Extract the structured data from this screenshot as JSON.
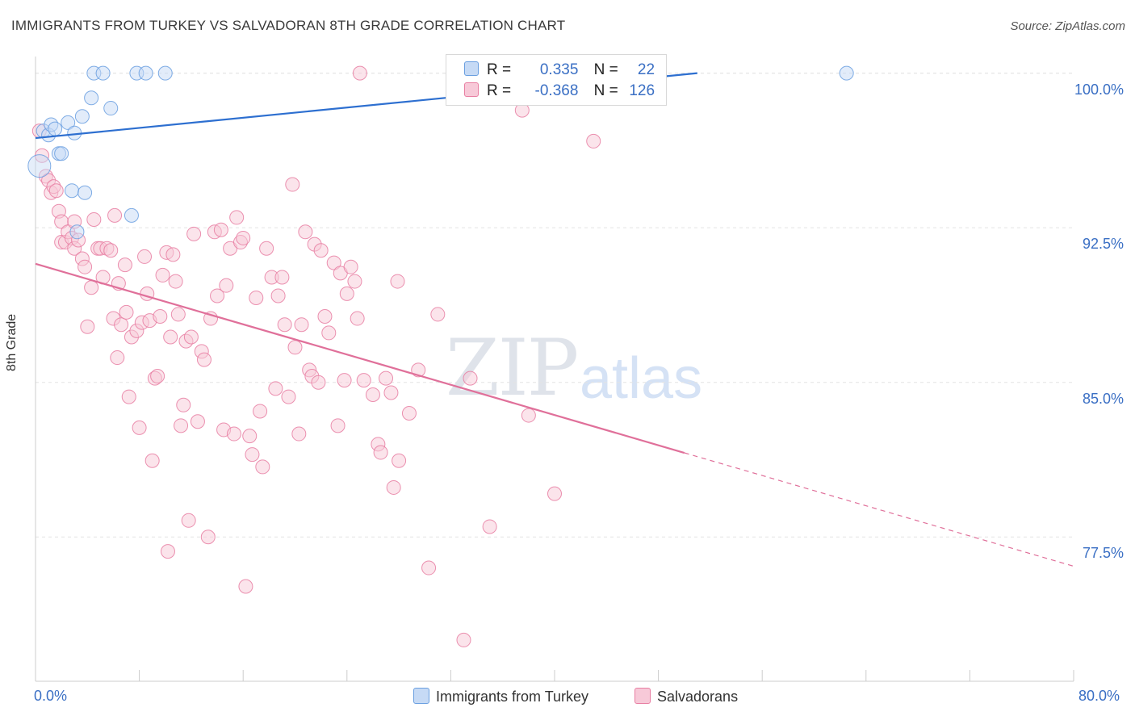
{
  "title": "IMMIGRANTS FROM TURKEY VS SALVADORAN 8TH GRADE CORRELATION CHART",
  "source": "Source: ZipAtlas.com",
  "watermark": {
    "zip": "ZIP",
    "atlas": "atlas"
  },
  "colors": {
    "blue": "#6a9fe0",
    "blue_fill": "#c6daf5",
    "pink": "#e87ea2",
    "pink_fill": "#f7c9d8",
    "blue_line": "#2d6fd0",
    "pink_line": "#e0709a",
    "tick_text": "#3a6fc4"
  },
  "stats": {
    "rows": [
      {
        "r_label": "R =",
        "r_value": "0.335",
        "n_label": "N =",
        "n_value": "22"
      },
      {
        "r_label": "R =",
        "r_value": "-0.368",
        "n_label": "N =",
        "n_value": "126"
      }
    ]
  },
  "legend": {
    "series1": "Immigrants from Turkey",
    "series2": "Salvadorans"
  },
  "chart_data": {
    "type": "scatter",
    "xlabel": "",
    "ylabel": "8th Grade",
    "xlim": [
      0,
      80
    ],
    "ylim": [
      70.5,
      101.2
    ],
    "x_tick_labels": [
      "0.0%",
      "80.0%"
    ],
    "y_ticks": [
      77.5,
      85.0,
      92.5,
      100.0
    ],
    "y_tick_labels": [
      "77.5%",
      "85.0%",
      "92.5%",
      "100.0%"
    ],
    "grid": true,
    "series": [
      {
        "name": "Immigrants from Turkey",
        "color": "#6a9fe0",
        "points": [
          [
            0.3,
            95.5
          ],
          [
            0.6,
            97.2
          ],
          [
            1.0,
            97.0
          ],
          [
            1.2,
            97.5
          ],
          [
            1.5,
            97.3
          ],
          [
            1.8,
            96.1
          ],
          [
            2.0,
            96.1
          ],
          [
            2.5,
            97.6
          ],
          [
            2.8,
            94.3
          ],
          [
            3.0,
            97.1
          ],
          [
            3.2,
            92.3
          ],
          [
            3.6,
            97.9
          ],
          [
            3.8,
            94.2
          ],
          [
            4.3,
            98.8
          ],
          [
            4.5,
            100.0
          ],
          [
            5.2,
            100.0
          ],
          [
            5.8,
            98.3
          ],
          [
            7.4,
            93.1
          ],
          [
            7.8,
            100.0
          ],
          [
            8.5,
            100.0
          ],
          [
            10.0,
            100.0
          ],
          [
            62.5,
            100.0
          ]
        ],
        "trend": {
          "x": [
            0,
            51
          ],
          "y": [
            96.85,
            100.0
          ],
          "solid_to": 51
        }
      },
      {
        "name": "Salvadorans",
        "color": "#e87ea2",
        "points": [
          [
            0.3,
            97.2
          ],
          [
            0.5,
            96.0
          ],
          [
            0.8,
            95.0
          ],
          [
            1.0,
            94.8
          ],
          [
            1.2,
            94.2
          ],
          [
            1.4,
            94.5
          ],
          [
            1.6,
            94.3
          ],
          [
            1.8,
            93.3
          ],
          [
            2.0,
            92.8
          ],
          [
            2.0,
            91.8
          ],
          [
            2.3,
            91.8
          ],
          [
            2.5,
            92.3
          ],
          [
            2.8,
            92.0
          ],
          [
            3.0,
            92.8
          ],
          [
            3.0,
            91.5
          ],
          [
            3.3,
            91.9
          ],
          [
            3.6,
            91.0
          ],
          [
            3.8,
            90.6
          ],
          [
            4.0,
            87.7
          ],
          [
            4.3,
            89.6
          ],
          [
            4.5,
            92.9
          ],
          [
            4.8,
            91.5
          ],
          [
            5.0,
            91.5
          ],
          [
            5.2,
            90.1
          ],
          [
            5.5,
            91.5
          ],
          [
            5.8,
            91.4
          ],
          [
            6.0,
            88.1
          ],
          [
            6.1,
            93.1
          ],
          [
            6.3,
            86.2
          ],
          [
            6.4,
            89.8
          ],
          [
            6.6,
            87.8
          ],
          [
            6.9,
            90.7
          ],
          [
            7.0,
            88.4
          ],
          [
            7.2,
            84.3
          ],
          [
            7.4,
            87.2
          ],
          [
            7.8,
            87.5
          ],
          [
            8.0,
            82.8
          ],
          [
            8.2,
            87.9
          ],
          [
            8.4,
            91.1
          ],
          [
            8.6,
            89.3
          ],
          [
            8.8,
            88.0
          ],
          [
            9.0,
            81.2
          ],
          [
            9.2,
            85.2
          ],
          [
            9.4,
            85.3
          ],
          [
            9.6,
            88.2
          ],
          [
            9.8,
            90.2
          ],
          [
            10.1,
            91.3
          ],
          [
            10.2,
            76.8
          ],
          [
            10.4,
            87.2
          ],
          [
            10.6,
            91.2
          ],
          [
            10.8,
            89.9
          ],
          [
            11.0,
            88.3
          ],
          [
            11.2,
            82.9
          ],
          [
            11.4,
            83.9
          ],
          [
            11.6,
            87.0
          ],
          [
            11.8,
            78.3
          ],
          [
            12.0,
            87.2
          ],
          [
            12.2,
            92.2
          ],
          [
            12.5,
            83.1
          ],
          [
            12.8,
            86.5
          ],
          [
            13.0,
            86.1
          ],
          [
            13.3,
            77.5
          ],
          [
            13.5,
            88.1
          ],
          [
            13.8,
            92.3
          ],
          [
            14.0,
            89.2
          ],
          [
            14.3,
            92.4
          ],
          [
            14.5,
            82.7
          ],
          [
            14.7,
            89.7
          ],
          [
            15.0,
            91.5
          ],
          [
            15.3,
            82.5
          ],
          [
            15.5,
            93.0
          ],
          [
            15.8,
            91.8
          ],
          [
            16.0,
            92.0
          ],
          [
            16.2,
            75.1
          ],
          [
            16.5,
            82.4
          ],
          [
            16.7,
            81.5
          ],
          [
            17.0,
            89.1
          ],
          [
            17.3,
            83.6
          ],
          [
            17.5,
            80.9
          ],
          [
            17.8,
            91.5
          ],
          [
            18.2,
            90.1
          ],
          [
            18.5,
            84.7
          ],
          [
            18.7,
            89.2
          ],
          [
            19.0,
            90.1
          ],
          [
            19.2,
            87.8
          ],
          [
            19.5,
            84.3
          ],
          [
            19.8,
            94.6
          ],
          [
            20.0,
            86.7
          ],
          [
            20.3,
            82.5
          ],
          [
            20.5,
            87.8
          ],
          [
            20.8,
            92.3
          ],
          [
            21.1,
            85.6
          ],
          [
            21.3,
            85.3
          ],
          [
            21.5,
            91.7
          ],
          [
            21.8,
            85.0
          ],
          [
            22.0,
            91.4
          ],
          [
            22.3,
            88.2
          ],
          [
            22.6,
            87.4
          ],
          [
            23.0,
            90.8
          ],
          [
            23.3,
            82.9
          ],
          [
            23.5,
            90.3
          ],
          [
            23.8,
            85.1
          ],
          [
            24.0,
            89.3
          ],
          [
            24.3,
            90.6
          ],
          [
            24.6,
            89.9
          ],
          [
            24.8,
            88.1
          ],
          [
            25.0,
            100.0
          ],
          [
            25.3,
            85.1
          ],
          [
            26.0,
            84.4
          ],
          [
            26.4,
            82.0
          ],
          [
            26.6,
            81.6
          ],
          [
            27.0,
            85.2
          ],
          [
            27.4,
            84.5
          ],
          [
            27.6,
            79.9
          ],
          [
            27.9,
            89.9
          ],
          [
            28.0,
            81.2
          ],
          [
            28.8,
            83.5
          ],
          [
            29.5,
            85.6
          ],
          [
            30.3,
            76.0
          ],
          [
            31.0,
            88.3
          ],
          [
            33.0,
            72.5
          ],
          [
            33.5,
            85.2
          ],
          [
            35.0,
            78.0
          ],
          [
            37.5,
            98.2
          ],
          [
            38.0,
            83.4
          ],
          [
            40.0,
            79.6
          ],
          [
            43.0,
            96.7
          ]
        ],
        "trend": {
          "x": [
            0,
            80
          ],
          "y": [
            90.75,
            76.08
          ],
          "solid_to": 50
        }
      }
    ]
  }
}
